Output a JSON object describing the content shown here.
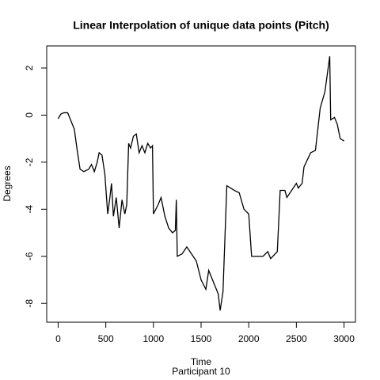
{
  "chart_data": {
    "type": "line",
    "title": "Linear Interpolation of unique data points (Pitch)",
    "xlabel": "Time",
    "subtitle": "Participant  10",
    "ylabel": "Degrees",
    "color": "#000000",
    "x": [
      0,
      30,
      60,
      100,
      130,
      170,
      200,
      230,
      270,
      320,
      350,
      380,
      410,
      430,
      460,
      490,
      520,
      540,
      560,
      580,
      610,
      640,
      670,
      700,
      720,
      740,
      760,
      790,
      820,
      850,
      880,
      910,
      940,
      970,
      990,
      1000,
      1050,
      1080,
      1120,
      1160,
      1200,
      1230,
      1240,
      1250,
      1300,
      1350,
      1400,
      1450,
      1500,
      1550,
      1580,
      1620,
      1650,
      1680,
      1700,
      1730,
      1770,
      1810,
      1850,
      1900,
      1950,
      2000,
      2030,
      2100,
      2150,
      2200,
      2230,
      2300,
      2330,
      2380,
      2400,
      2450,
      2500,
      2520,
      2560,
      2580,
      2650,
      2700,
      2750,
      2800,
      2850,
      2860,
      2900,
      2930,
      2960,
      3000
    ],
    "values": [
      -0.15,
      0.05,
      0.1,
      0.1,
      -0.2,
      -0.6,
      -1.5,
      -2.3,
      -2.4,
      -2.3,
      -2.1,
      -2.4,
      -2.0,
      -1.6,
      -1.7,
      -2.5,
      -4.2,
      -3.6,
      -2.9,
      -4.3,
      -3.5,
      -4.8,
      -3.6,
      -4.2,
      -3.8,
      -1.2,
      -1.4,
      -0.9,
      -0.8,
      -1.6,
      -1.3,
      -1.6,
      -1.2,
      -1.4,
      -1.3,
      -4.2,
      -3.8,
      -3.5,
      -4.3,
      -4.8,
      -5.0,
      -4.9,
      -3.6,
      -6.0,
      -5.9,
      -5.6,
      -5.9,
      -6.2,
      -7.0,
      -7.4,
      -6.6,
      -7.0,
      -7.3,
      -7.6,
      -8.3,
      -7.5,
      -3.0,
      -3.1,
      -3.2,
      -3.3,
      -4.0,
      -4.2,
      -6.0,
      -6.0,
      -6.0,
      -5.8,
      -6.1,
      -5.8,
      -3.2,
      -3.2,
      -3.5,
      -3.2,
      -2.9,
      -3.1,
      -2.9,
      -2.2,
      -1.6,
      -1.5,
      0.3,
      1.0,
      2.5,
      -0.2,
      -0.1,
      -0.4,
      -1.0,
      -1.1
    ],
    "xlim": [
      -120,
      3120
    ],
    "xticks": [
      0,
      500,
      1000,
      1500,
      2000,
      2500,
      3000
    ],
    "ylim": [
      -8.8,
      2.94
    ],
    "yticks": [
      -8,
      -6,
      -4,
      -2,
      0,
      2
    ]
  }
}
